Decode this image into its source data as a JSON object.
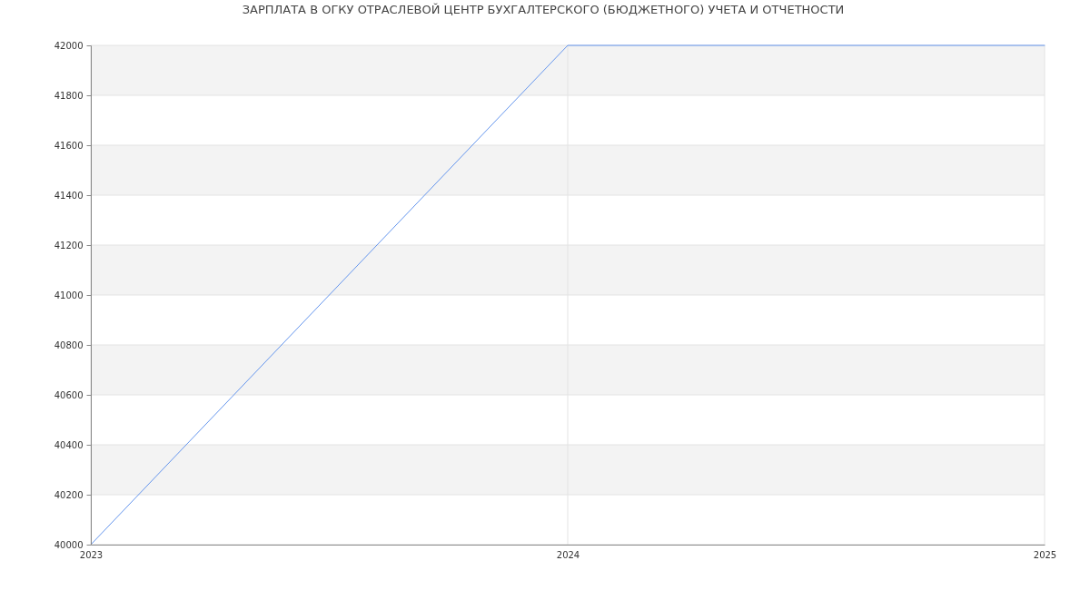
{
  "chart_data": {
    "type": "line",
    "title": "ЗАРПЛАТА В ОГКУ ОТРАСЛЕВОЙ ЦЕНТР БУХГАЛТЕРСКОГО (БЮДЖЕТНОГО) УЧЕТА И ОТЧЕТНОСТИ",
    "x": [
      2023,
      2024,
      2025
    ],
    "series": [
      {
        "color": "#6495ed",
        "values": [
          40000,
          42000,
          42000
        ]
      }
    ],
    "xlim": [
      2023,
      2025
    ],
    "xticks": [
      2023,
      2024,
      2025
    ],
    "ylim": [
      40000,
      42000
    ],
    "yticks": [
      40000,
      40200,
      40400,
      40600,
      40800,
      41000,
      41200,
      41400,
      41600,
      41800,
      42000
    ],
    "grid": true,
    "bands": [
      {
        "axis": "y",
        "from": 40200,
        "to": 40400,
        "color": "#f3f3f3"
      },
      {
        "axis": "y",
        "from": 40600,
        "to": 40800,
        "color": "#f3f3f3"
      },
      {
        "axis": "y",
        "from": 41000,
        "to": 41200,
        "color": "#f3f3f3"
      },
      {
        "axis": "y",
        "from": 41400,
        "to": 41600,
        "color": "#f3f3f3"
      },
      {
        "axis": "y",
        "from": 41800,
        "to": 42000,
        "color": "#f3f3f3"
      }
    ]
  }
}
